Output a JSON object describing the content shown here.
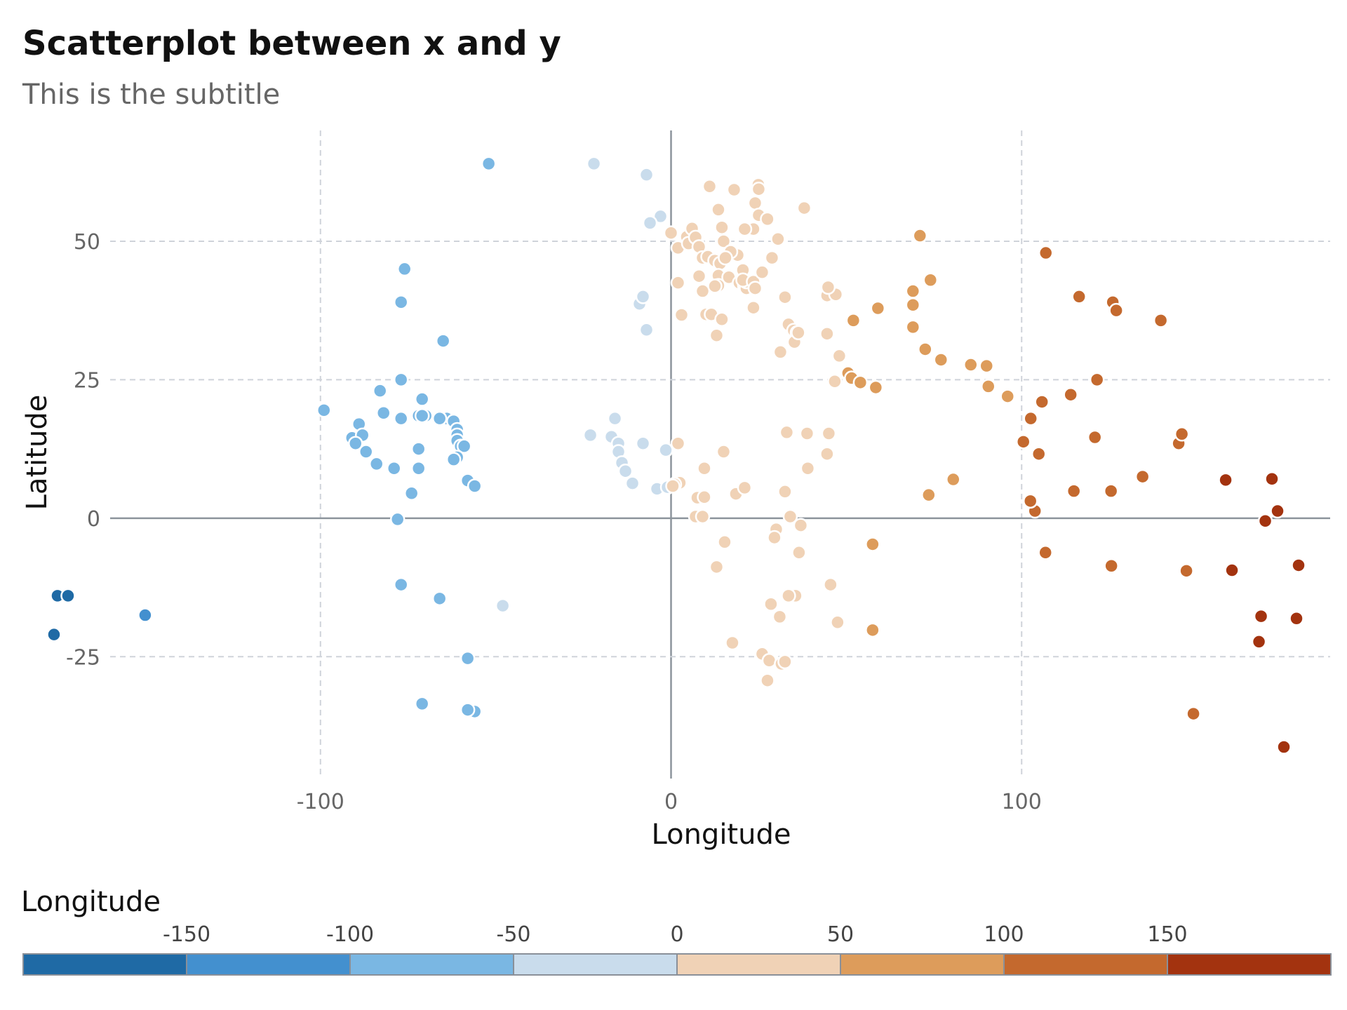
{
  "chart_data": {
    "type": "scatter",
    "title": "Scatterplot between x and y",
    "subtitle": "This is the subtitle",
    "xlabel": "Longitude",
    "ylabel": "Latitude",
    "xlim": [
      -185,
      188
    ],
    "ylim": [
      -47,
      70
    ],
    "xticks": [
      -100,
      0,
      100
    ],
    "yticks": [
      -25,
      0,
      25,
      50
    ],
    "grid": true,
    "legend": {
      "title": "Longitude",
      "placement": "bottom",
      "breaks": [
        -150,
        -100,
        -50,
        0,
        50,
        100,
        150
      ],
      "colors": [
        "#1f6aa5",
        "#4390cf",
        "#7ab7e3",
        "#c9dcec",
        "#f0d2b6",
        "#dd9c5b",
        "#c4692e",
        "#a3330f"
      ]
    },
    "points": [
      [
        -175,
        -14
      ],
      [
        -172,
        -14
      ],
      [
        -176,
        -21
      ],
      [
        -150,
        -17.5
      ],
      [
        -52,
        64
      ],
      [
        -76,
        45
      ],
      [
        -77,
        39
      ],
      [
        -65,
        32
      ],
      [
        -99,
        19.5
      ],
      [
        -89,
        17
      ],
      [
        -91,
        14.5
      ],
      [
        -88,
        15
      ],
      [
        -90,
        13.5
      ],
      [
        -87,
        12
      ],
      [
        -84,
        9.8
      ],
      [
        -79,
        9
      ],
      [
        -83,
        23
      ],
      [
        -77,
        25
      ],
      [
        -82,
        19
      ],
      [
        -77,
        18
      ],
      [
        -72,
        18.5
      ],
      [
        -70,
        18.5
      ],
      [
        -64,
        18
      ],
      [
        -62,
        17.5
      ],
      [
        -61,
        16
      ],
      [
        -61,
        15
      ],
      [
        -61,
        14
      ],
      [
        -60,
        13
      ],
      [
        -59,
        13
      ],
      [
        -61,
        11
      ],
      [
        -62,
        10.6
      ],
      [
        -66,
        18
      ],
      [
        -71,
        21.5
      ],
      [
        -72,
        12.5
      ],
      [
        -72,
        9
      ],
      [
        -74,
        4.5
      ],
      [
        -78,
        -0.2
      ],
      [
        -58,
        6.8
      ],
      [
        -56,
        5.8
      ],
      [
        -77,
        -12
      ],
      [
        -66,
        -14.5
      ],
      [
        -58,
        -25.3
      ],
      [
        -56,
        -34.9
      ],
      [
        -58,
        -34.6
      ],
      [
        -71,
        -33.5
      ],
      [
        -71,
        18.5
      ],
      [
        -22,
        64
      ],
      [
        -7,
        62
      ],
      [
        -3,
        54.5
      ],
      [
        -6,
        53.3
      ],
      [
        0,
        51.5
      ],
      [
        -9,
        38.7
      ],
      [
        -8,
        40
      ],
      [
        -7,
        34
      ],
      [
        -16,
        18
      ],
      [
        -23,
        15
      ],
      [
        -17,
        14.7
      ],
      [
        -15,
        13.5
      ],
      [
        -15,
        12
      ],
      [
        -14,
        10
      ],
      [
        -13,
        8.5
      ],
      [
        -11,
        6.3
      ],
      [
        -4,
        5.3
      ],
      [
        -8,
        13.5
      ],
      [
        -1.5,
        12.3
      ],
      [
        -1,
        5.6
      ],
      [
        -48,
        -15.8
      ],
      [
        2,
        48.8
      ],
      [
        4.5,
        50.8
      ],
      [
        6,
        52.3
      ],
      [
        5,
        49.6
      ],
      [
        7,
        50.7
      ],
      [
        8,
        49
      ],
      [
        9,
        47
      ],
      [
        10.5,
        47.2
      ],
      [
        12.5,
        46.5
      ],
      [
        14,
        46
      ],
      [
        15,
        50
      ],
      [
        14.5,
        52.5
      ],
      [
        13.5,
        55.7
      ],
      [
        11,
        59.9
      ],
      [
        18,
        59.3
      ],
      [
        24.9,
        60.2
      ],
      [
        25,
        59.4
      ],
      [
        24,
        56.9
      ],
      [
        25,
        54.7
      ],
      [
        27.5,
        54
      ],
      [
        23.5,
        52.2
      ],
      [
        21,
        52.2
      ],
      [
        19,
        47.5
      ],
      [
        17,
        48.1
      ],
      [
        15.5,
        47
      ],
      [
        13.5,
        43.8
      ],
      [
        16.5,
        43.5
      ],
      [
        13.5,
        42
      ],
      [
        19.5,
        42.5
      ],
      [
        21,
        42
      ],
      [
        21.5,
        41.5
      ],
      [
        21.5,
        42.7
      ],
      [
        20.5,
        44.8
      ],
      [
        20.5,
        43
      ],
      [
        23.5,
        42.7
      ],
      [
        24,
        41.5
      ],
      [
        26,
        44.4
      ],
      [
        28.8,
        47
      ],
      [
        30.5,
        50.4
      ],
      [
        38,
        56
      ],
      [
        8,
        43.7
      ],
      [
        9,
        41
      ],
      [
        12.5,
        41.9
      ],
      [
        2,
        42.5
      ],
      [
        3,
        36.7
      ],
      [
        10,
        36.8
      ],
      [
        11.5,
        36.8
      ],
      [
        14.5,
        35.9
      ],
      [
        13,
        33
      ],
      [
        23.5,
        38
      ],
      [
        32.5,
        39.9
      ],
      [
        33.5,
        35
      ],
      [
        35,
        33.9
      ],
      [
        36,
        33.5
      ],
      [
        35.2,
        31.8
      ],
      [
        31.2,
        30
      ],
      [
        36.3,
        33.5
      ],
      [
        44.5,
        33.3
      ],
      [
        44.5,
        40.2
      ],
      [
        47,
        40.4
      ],
      [
        44.8,
        41.7
      ],
      [
        48,
        29.3
      ],
      [
        50.5,
        26.2
      ],
      [
        51.5,
        25.3
      ],
      [
        54,
        24.5
      ],
      [
        58.4,
        23.6
      ],
      [
        46.7,
        24.7
      ],
      [
        33,
        15.5
      ],
      [
        38.8,
        15.3
      ],
      [
        45,
        15.3
      ],
      [
        44.5,
        11.6
      ],
      [
        39,
        9
      ],
      [
        2,
        13.5
      ],
      [
        2.5,
        6.4
      ],
      [
        1,
        6.1
      ],
      [
        0.5,
        5.8
      ],
      [
        9.5,
        9
      ],
      [
        7.5,
        3.7
      ],
      [
        9.5,
        3.8
      ],
      [
        7,
        0.3
      ],
      [
        9,
        0.3
      ],
      [
        15,
        12
      ],
      [
        18.5,
        4.4
      ],
      [
        21,
        5.5
      ],
      [
        32.5,
        4.8
      ],
      [
        34,
        0.3
      ],
      [
        37,
        -1.3
      ],
      [
        30,
        -2
      ],
      [
        29.5,
        -3.5
      ],
      [
        36.5,
        -6.2
      ],
      [
        15.3,
        -4.3
      ],
      [
        13,
        -8.8
      ],
      [
        45.5,
        -12
      ],
      [
        35.5,
        -14
      ],
      [
        33.5,
        -14
      ],
      [
        28.5,
        -15.5
      ],
      [
        31,
        -17.8
      ],
      [
        47.5,
        -18.8
      ],
      [
        26,
        -24.5
      ],
      [
        28,
        -25.7
      ],
      [
        31.5,
        -26.3
      ],
      [
        32.5,
        -25.9
      ],
      [
        27.5,
        -29.3
      ],
      [
        17.5,
        -22.5
      ]
    ],
    "points2": [
      [
        71,
        51
      ],
      [
        74,
        43
      ],
      [
        69,
        41
      ],
      [
        69,
        38.5
      ],
      [
        69,
        34.5
      ],
      [
        59,
        37.9
      ],
      [
        52,
        35.7
      ],
      [
        72.5,
        30.5
      ],
      [
        77,
        28.6
      ],
      [
        85.5,
        27.7
      ],
      [
        90,
        27.5
      ],
      [
        90.5,
        23.8
      ],
      [
        96,
        22
      ],
      [
        80.5,
        7
      ],
      [
        73.5,
        4.2
      ],
      [
        57.5,
        -4.7
      ],
      [
        57.5,
        -20.2
      ],
      [
        106.9,
        47.9
      ],
      [
        116.4,
        40
      ],
      [
        126,
        39
      ],
      [
        127,
        37.5
      ],
      [
        139.7,
        35.7
      ],
      [
        121.5,
        25
      ],
      [
        114,
        22.3
      ],
      [
        105.8,
        21
      ],
      [
        102.6,
        18
      ],
      [
        100.5,
        13.8
      ],
      [
        104.9,
        11.6
      ],
      [
        120.9,
        14.6
      ],
      [
        134.5,
        7.5
      ],
      [
        125.5,
        4.9
      ],
      [
        114.9,
        4.9
      ],
      [
        103.8,
        1.3
      ],
      [
        102.5,
        3.1
      ],
      [
        106.8,
        -6.2
      ],
      [
        125.6,
        -8.6
      ],
      [
        147,
        -9.5
      ],
      [
        144.8,
        13.5
      ],
      [
        145.7,
        15.2
      ],
      [
        149,
        -35.3
      ],
      [
        158.2,
        6.9
      ],
      [
        171.4,
        7.1
      ],
      [
        173,
        1.3
      ],
      [
        169.5,
        -0.5
      ],
      [
        160,
        -9.4
      ],
      [
        178.4,
        -18.1
      ],
      [
        168.3,
        -17.7
      ],
      [
        167.7,
        -22.3
      ],
      [
        179,
        -8.5
      ],
      [
        174.8,
        -41.3
      ]
    ]
  }
}
